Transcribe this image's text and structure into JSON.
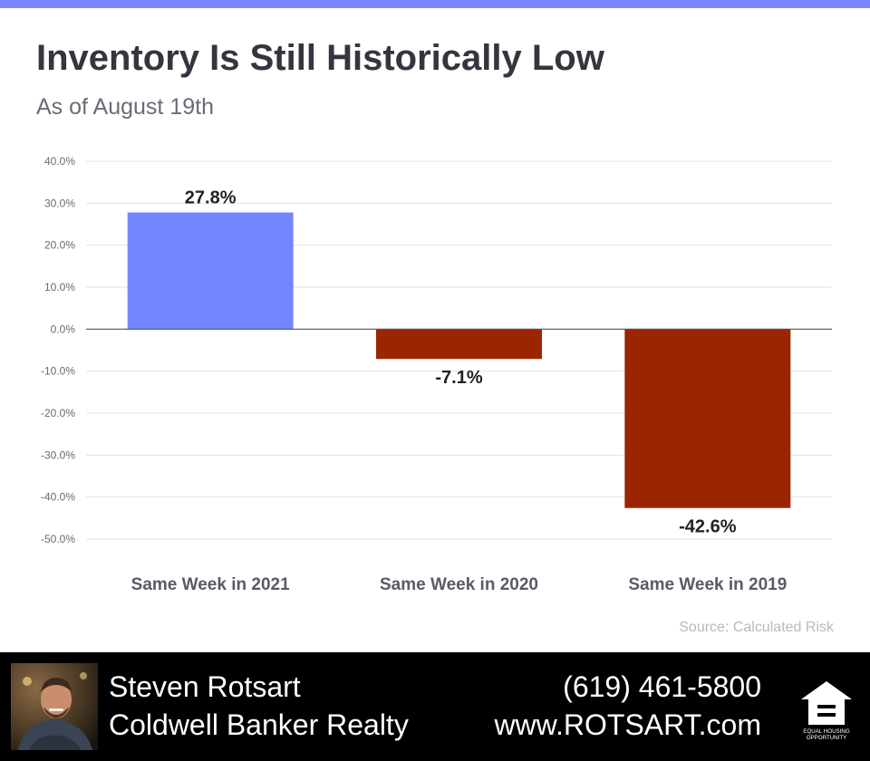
{
  "header": {
    "title": "Inventory Is Still Historically Low",
    "subtitle": "As of August 19th"
  },
  "chart_data": {
    "type": "bar",
    "title": "Inventory Is Still Historically Low",
    "subtitle": "As of August 19th",
    "categories": [
      "Same Week in 2021",
      "Same Week in 2020",
      "Same Week in 2019"
    ],
    "values": [
      27.8,
      -7.1,
      -42.6
    ],
    "data_labels": [
      "27.8%",
      "-7.1%",
      "-42.6%"
    ],
    "ylim": [
      -50,
      40
    ],
    "yticks": [
      40,
      30,
      20,
      10,
      0,
      -10,
      -20,
      -30,
      -40,
      -50
    ],
    "ytick_labels": [
      "40.0%",
      "30.0%",
      "20.0%",
      "10.0%",
      "0.0%",
      "-10.0%",
      "-20.0%",
      "-30.0%",
      "-40.0%",
      "-50.0%"
    ],
    "xlabel": "",
    "ylabel": "",
    "grid": true,
    "colors": {
      "positive": "#7286ff",
      "negative": "#9b2500",
      "grid": "#e2e2e2",
      "zero_line": "#555555"
    }
  },
  "source": "Source: Calculated Risk",
  "footer": {
    "agent_name": "Steven Rotsart",
    "company": "Coldwell Banker Realty",
    "phone": "(619) 461-5800",
    "website": "www.ROTSART.com",
    "logo_text_line1": "EQUAL HOUSING",
    "logo_text_line2": "OPPORTUNITY",
    "logo_icon": "equal-housing-icon",
    "photo_icon": "agent-photo"
  },
  "colors": {
    "accent": "#7b86fb",
    "title": "#35353f",
    "subtitle": "#6b6b78",
    "footer_bg": "#000000"
  }
}
